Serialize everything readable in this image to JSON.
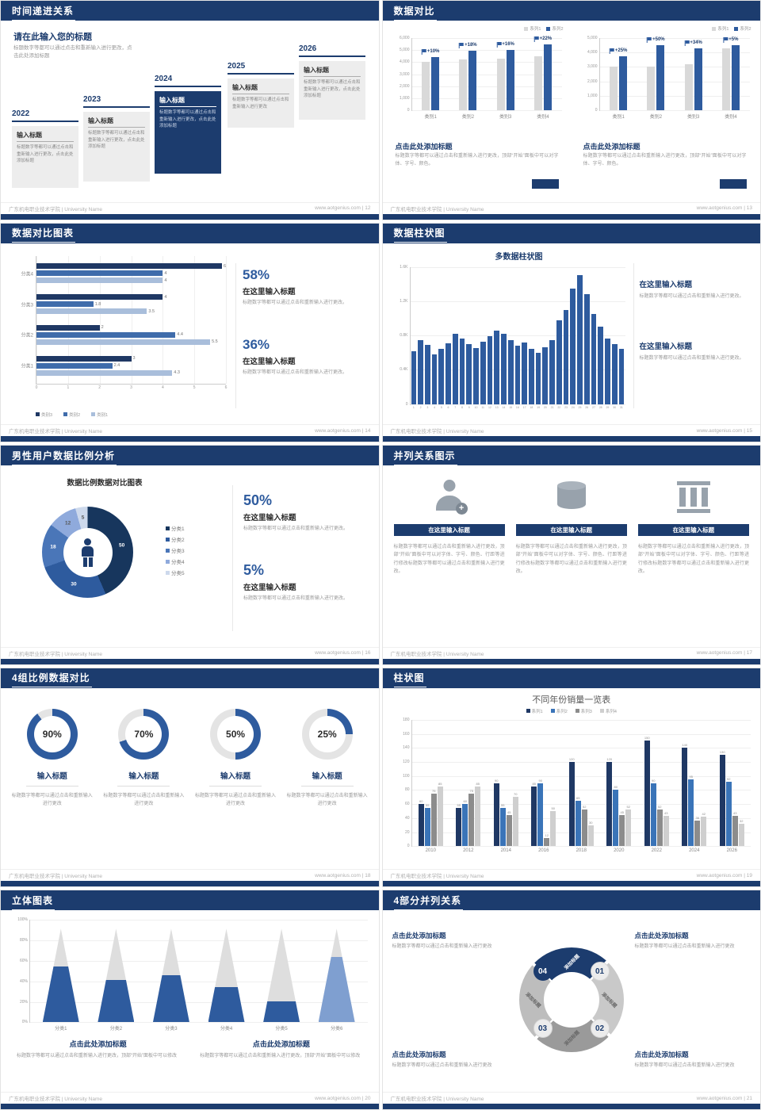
{
  "theme": {
    "navy": "#1c3c6e",
    "blue": "#2e5b9e",
    "gray_bar": "#d9d9d9"
  },
  "footer": {
    "left": "广东机电职业技术学院 | University Name",
    "site": "www.aotgenius.com"
  },
  "slides": {
    "s1": {
      "title": "时间递进关系",
      "page": "12",
      "footer_right": "www.aotgenius.com | 12",
      "heading": "请在此输入您的标题",
      "desc": "标题数字等都可以通过点击和重新输入进行更改，点击此处添加标题",
      "timeline": [
        {
          "year": "2022",
          "label": "输入标题",
          "text": "标题数字等都可以通过点击和重新输入进行更改，点击此处添加标题",
          "dark": false
        },
        {
          "year": "2023",
          "label": "输入标题",
          "text": "标题数字等都可以通过点击和重新输入进行更改，点击此处添加标题",
          "dark": false
        },
        {
          "year": "2024",
          "label": "输入标题",
          "text": "标题数字等都可以通过点击和重新输入进行更改，点击此处添加标题",
          "dark": true
        },
        {
          "year": "2025",
          "label": "输入标题",
          "text": "标题数字等都可以通过点击和重新输入进行更改",
          "dark": false
        },
        {
          "year": "2026",
          "label": "输入标题",
          "text": "标题数字等都可以通过点击和重新输入进行更改，点击此处添加标题",
          "dark": false
        }
      ]
    },
    "s2": {
      "title": "数据对比",
      "page": "13",
      "footer_right": "www.aotgenius.com | 13",
      "charts": [
        {
          "legend": [
            "系列1",
            "系列2"
          ],
          "yticks": [
            "6,000",
            "5,000",
            "4,000",
            "3,000",
            "2,000",
            "1,000",
            "0"
          ],
          "ymax": 6000,
          "categories": [
            "类别1",
            "类别2",
            "类别3",
            "类别4"
          ],
          "series1": [
            4000,
            4200,
            4300,
            4500
          ],
          "series2": [
            4400,
            4950,
            4990,
            5500
          ],
          "pcts": [
            "+10%",
            "+18%",
            "+16%",
            "+22%"
          ],
          "heading": "点击此处添加标题",
          "text": "标题数字等都可以通过点击和重新输入进行更改，顶部“开始”面板中可以对字体、字号、颜色。"
        },
        {
          "legend": [
            "系列1",
            "系列2"
          ],
          "yticks": [
            "5,000",
            "4,000",
            "3,000",
            "2,000",
            "1,000",
            "0"
          ],
          "ymax": 5000,
          "categories": [
            "类别1",
            "类别2",
            "类别3",
            "类别4"
          ],
          "series1": [
            3000,
            3000,
            3200,
            4300
          ],
          "series2": [
            3750,
            4500,
            4290,
            4520
          ],
          "pcts": [
            "+25%",
            "+50%",
            "+34%",
            "+5%"
          ],
          "heading": "点击此处添加标题",
          "text": "标题数字等都可以通过点击和重新输入进行更改，顶部“开始”面板中可以对字体、字号、颜色。"
        }
      ]
    },
    "s3": {
      "title": "数据对比图表",
      "page": "14",
      "footer_right": "www.aotgenius.com | 14",
      "chart": {
        "type": "bar",
        "categories": [
          "分类4",
          "分类3",
          "分类2",
          "分类1"
        ],
        "series_names": [
          "类别3",
          "类别2",
          "类别1"
        ],
        "rows": [
          [
            6,
            4,
            4
          ],
          [
            4,
            1.8,
            3.5
          ],
          [
            2,
            4.4,
            5.5
          ],
          [
            3,
            2.4,
            4.3
          ]
        ],
        "xticks": [
          "0",
          "1",
          "2",
          "3",
          "4",
          "5",
          "6"
        ],
        "xmax": 6
      },
      "stats": [
        {
          "pct": "58%",
          "heading": "在这里输入标题",
          "text": "标题数字等都可以通过点击和重新输入进行更改。"
        },
        {
          "pct": "36%",
          "heading": "在这里输入标题",
          "text": "标题数字等都可以通过点击和重新输入进行更改。"
        }
      ]
    },
    "s4": {
      "title": "数据柱状图",
      "page": "15",
      "footer_right": "www.aotgenius.com | 15",
      "chart": {
        "type": "bar",
        "title": "多数据柱状图",
        "yticks": [
          "1.6K",
          "1.2K",
          "0.8K",
          "0.4K",
          "0"
        ],
        "ymax": 1600,
        "xticks": [
          "1",
          "2",
          "3",
          "4",
          "5",
          "6",
          "7",
          "8",
          "9",
          "10",
          "11",
          "12",
          "13",
          "14",
          "15",
          "16",
          "17",
          "18",
          "19",
          "20",
          "21",
          "22",
          "23",
          "24",
          "25",
          "26",
          "27",
          "28",
          "29",
          "30",
          "31"
        ],
        "values": [
          620,
          750,
          690,
          580,
          640,
          710,
          820,
          760,
          700,
          650,
          730,
          790,
          860,
          820,
          750,
          680,
          720,
          640,
          600,
          660,
          750,
          980,
          1100,
          1350,
          1500,
          1280,
          1050,
          900,
          760,
          700,
          640
        ]
      },
      "blocks": [
        {
          "heading": "在这里输入标题",
          "text": "标题数字等都可以通过点击和重新输入进行更改。"
        },
        {
          "heading": "在这里输入标题",
          "text": "标题数字等都可以通过点击和重新输入进行更改。"
        }
      ]
    },
    "s5": {
      "title": "男性用户数据比例分析",
      "page": "16",
      "footer_right": "www.aotgenius.com | 16",
      "chart": {
        "type": "pie",
        "title": "数据比例数据对比图表",
        "values": [
          50,
          30,
          18,
          12,
          5
        ],
        "labels": [
          "50",
          "30",
          "18",
          "12",
          "5"
        ],
        "legend": [
          "分类1",
          "分类2",
          "分类3",
          "分类4",
          "分类5"
        ]
      },
      "stats": [
        {
          "pct": "50%",
          "heading": "在这里输入标题",
          "text": "标题数字等都可以通过点击和重新输入进行更改。"
        },
        {
          "pct": "5%",
          "heading": "在这里输入标题",
          "text": "标题数字等都可以通过点击和重新输入进行更改。"
        }
      ]
    },
    "s6": {
      "title": "并列关系图示",
      "page": "17",
      "footer_right": "www.aotgenius.com | 17",
      "columns": [
        {
          "icon": "medical-person",
          "button": "在这里输入标题",
          "text": "标题数字等都可以通过点击和重新输入进行更改，顶部“开始”面板中可以对字体、字号、颜色、行距等进行修改标题数字等都可以通过点击和重新输入进行更改。"
        },
        {
          "icon": "cylinder",
          "button": "在这里输入标题",
          "text": "标题数字等都可以通过点击和重新输入进行更改，顶部“开始”面板中可以对字体、字号、颜色、行距等进行修改标题数字等都可以通过点击和重新输入进行更改。"
        },
        {
          "icon": "building",
          "button": "在这里输入标题",
          "text": "标题数字等都可以通过点击和重新输入进行更改，顶部“开始”面板中可以对字体、字号、颜色、行距等进行修改标题数字等都可以通过点击和重新输入进行更改。"
        }
      ]
    },
    "s7": {
      "title": "4组比例数据对比",
      "page": "18",
      "footer_right": "www.aotgenius.com | 18",
      "rings": [
        {
          "pct": 90,
          "label": "90%",
          "heading": "输入标题",
          "text": "标题数字等都可以通过点击和重新输入进行更改"
        },
        {
          "pct": 70,
          "label": "70%",
          "heading": "输入标题",
          "text": "标题数字等都可以通过点击和重新输入进行更改"
        },
        {
          "pct": 50,
          "label": "50%",
          "heading": "输入标题",
          "text": "标题数字等都可以通过点击和重新输入进行更改"
        },
        {
          "pct": 25,
          "label": "25%",
          "heading": "输入标题",
          "text": "标题数字等都可以通过点击和重新输入进行更改"
        }
      ]
    },
    "s8": {
      "title": "柱状图",
      "page": "19",
      "footer_right": "www.aotgenius.com | 19",
      "chart": {
        "type": "bar",
        "title": "不同年份销量一览表",
        "legend": [
          "系列1",
          "系列2",
          "系列3",
          "系列4"
        ],
        "categories": [
          "2010",
          "2012",
          "2014",
          "2016",
          "2018",
          "2020",
          "2022",
          "2024",
          "2026"
        ],
        "series": [
          {
            "name": "系列1",
            "values": [
              60,
              55,
              90,
              85,
              120,
              120,
              150,
              140,
              130
            ]
          },
          {
            "name": "系列2",
            "values": [
              55,
              60,
              55,
              90,
              65,
              80,
              90,
              95,
              92
            ]
          },
          {
            "name": "系列3",
            "values": [
              75,
              75,
              45,
              12,
              52,
              45,
              52,
              36,
              43
            ]
          },
          {
            "name": "系列4",
            "values": [
              85,
              85,
              70,
              50,
              30,
              52,
              43,
              42,
              32
            ]
          }
        ],
        "yticks": [
          "180",
          "160",
          "140",
          "120",
          "100",
          "80",
          "60",
          "40",
          "20",
          "0"
        ],
        "ymax": 180
      }
    },
    "s9": {
      "title": "立体图表",
      "page": "20",
      "footer_right": "www.aotgenius.com | 20",
      "chart": {
        "type": "bar",
        "categories": [
          "分类1",
          "分类2",
          "分类3",
          "分类4",
          "分类5",
          "分类6"
        ],
        "values": [
          60,
          45,
          50,
          38,
          22,
          70
        ],
        "yticks": [
          "100%",
          "80%",
          "60%",
          "40%",
          "20%",
          "0%"
        ],
        "ymax": 100
      },
      "blocks": [
        {
          "heading": "点击此处添加标题",
          "text": "标题数字等都可以通过点击和重新输入进行更改，顶部“开始”面板中可以修改"
        },
        {
          "heading": "点击此处添加标题",
          "text": "标题数字等都可以通过点击和重新输入进行更改，顶部“开始”面板中可以修改"
        }
      ]
    },
    "s10": {
      "title": "4部分并列关系",
      "page": "21",
      "footer_right": "www.aotgenius.com | 21",
      "segments": [
        "添加标题",
        "添加标题",
        "添加标题",
        "添加标题"
      ],
      "numbers": [
        "01",
        "02",
        "03",
        "04"
      ],
      "blocks": [
        {
          "heading": "点击此处添加标题",
          "text": "标题数字等都可以通过点击和重新输入进行更改"
        },
        {
          "heading": "点击此处添加标题",
          "text": "标题数字等都可以通过点击和重新输入进行更改"
        },
        {
          "heading": "点击此处添加标题",
          "text": "标题数字等都可以通过点击和重新输入进行更改"
        },
        {
          "heading": "点击此处添加标题",
          "text": "标题数字等都可以通过点击和重新输入进行更改"
        }
      ]
    }
  }
}
